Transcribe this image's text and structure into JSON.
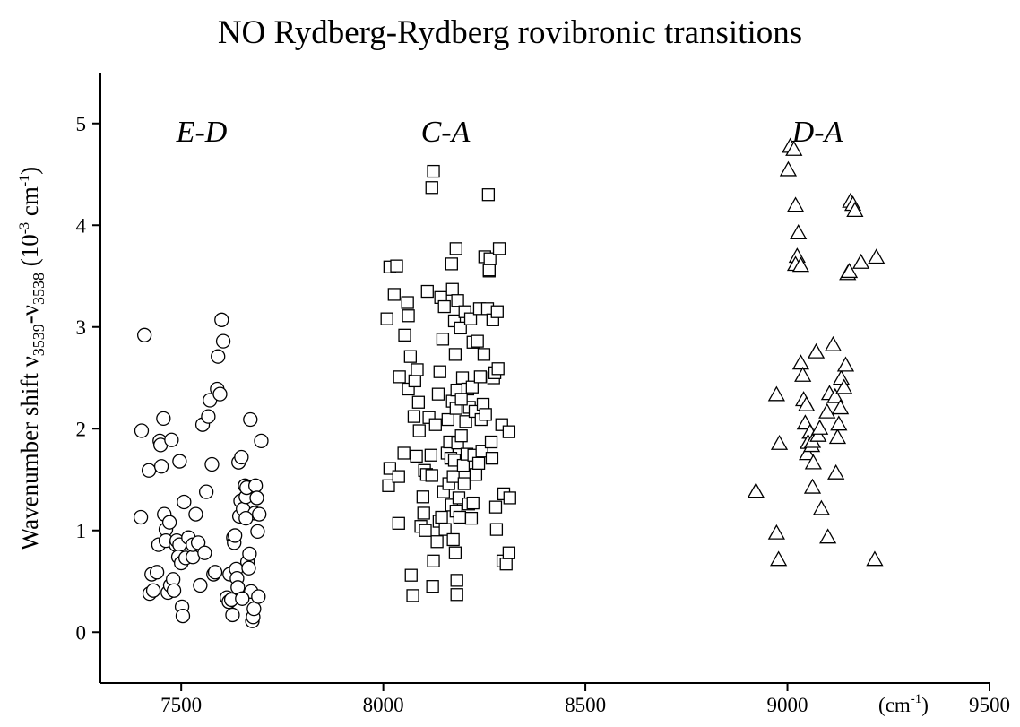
{
  "chart_data": {
    "type": "scatter",
    "title": "NO Rydberg-Rydberg rovibronic transitions",
    "ylabel": [
      "Wavenumber shift ν",
      "3539",
      "-ν",
      "3538",
      " (10",
      "-3",
      " cm",
      "-1",
      ")"
    ],
    "xunit": [
      "(cm",
      "-1",
      ")"
    ],
    "xlim": [
      7300,
      9500
    ],
    "xticks": [
      7500,
      8000,
      8500,
      9000,
      9500
    ],
    "ylim": [
      -0.5,
      5.5
    ],
    "yticks": [
      0,
      1,
      2,
      3,
      4,
      5
    ],
    "grid": false,
    "series": [
      {
        "name": "E-D",
        "marker": "circle",
        "color": "#000000",
        "x": [
          7409,
          7402,
          7400,
          7420,
          7427,
          7422,
          7431,
          7440,
          7444,
          7447,
          7451,
          7449,
          7456,
          7458,
          7462,
          7462,
          7471,
          7467,
          7476,
          7473,
          7480,
          7482,
          7487,
          7489,
          7496,
          7493,
          7500,
          7496,
          7502,
          7504,
          7507,
          7511,
          7518,
          7529,
          7529,
          7536,
          7542,
          7547,
          7553,
          7558,
          7562,
          7567,
          7571,
          7576,
          7580,
          7584,
          7589,
          7591,
          7596,
          7600,
          7604,
          7613,
          7618,
          7620,
          7624,
          7627,
          7629,
          7631,
          7633,
          7636,
          7638,
          7640,
          7642,
          7644,
          7647,
          7649,
          7653,
          7658,
          7660,
          7662,
          7664,
          7667,
          7669,
          7671,
          7673,
          7676,
          7678,
          7680,
          7682,
          7684,
          7687,
          7689,
          7691,
          7693,
          7698,
          7651,
          7660
        ],
        "values": [
          2.92,
          1.98,
          1.13,
          1.59,
          0.57,
          0.38,
          0.41,
          0.59,
          0.86,
          1.88,
          1.63,
          1.84,
          2.1,
          1.16,
          1.01,
          0.9,
          1.08,
          0.39,
          1.89,
          0.46,
          0.52,
          0.41,
          0.86,
          0.9,
          0.86,
          0.74,
          0.68,
          1.68,
          0.25,
          0.16,
          1.28,
          0.73,
          0.93,
          0.74,
          0.86,
          1.16,
          0.88,
          0.46,
          2.04,
          0.78,
          1.38,
          2.12,
          2.28,
          1.65,
          0.57,
          0.59,
          2.39,
          2.71,
          2.34,
          3.07,
          2.86,
          0.34,
          0.3,
          0.57,
          0.32,
          0.17,
          0.93,
          0.88,
          0.95,
          0.62,
          0.53,
          0.44,
          1.67,
          1.14,
          1.29,
          1.72,
          1.21,
          1.44,
          1.33,
          1.42,
          0.69,
          0.63,
          0.77,
          2.09,
          0.4,
          0.11,
          0.15,
          0.23,
          1.17,
          1.44,
          1.32,
          0.99,
          0.35,
          1.16,
          1.88,
          0.33,
          1.12
        ]
      },
      {
        "name": "C-A",
        "marker": "square",
        "color": "#000000",
        "x": [
          8016,
          8033,
          8027,
          8009,
          8016,
          8013,
          8038,
          8038,
          8040,
          8051,
          8053,
          8060,
          8062,
          8062,
          8067,
          8069,
          8073,
          8076,
          8078,
          8082,
          8084,
          8087,
          8089,
          8093,
          8098,
          8100,
          8102,
          8104,
          8107,
          8109,
          8113,
          8118,
          8120,
          8122,
          8124,
          8120,
          8124,
          8129,
          8133,
          8136,
          8138,
          8140,
          8142,
          8144,
          8147,
          8149,
          8151,
          8153,
          8158,
          8160,
          8162,
          8164,
          8167,
          8169,
          8169,
          8171,
          8171,
          8173,
          8173,
          8176,
          8176,
          8178,
          8178,
          8180,
          8180,
          8180,
          8182,
          8182,
          8182,
          8184,
          8184,
          8187,
          8189,
          8191,
          8193,
          8196,
          8198,
          8200,
          8202,
          8204,
          8207,
          8209,
          8211,
          8213,
          8216,
          8218,
          8220,
          8222,
          8224,
          8227,
          8229,
          8233,
          8236,
          8238,
          8240,
          8242,
          8244,
          8247,
          8249,
          8251,
          8253,
          8258,
          8260,
          8262,
          8262,
          8264,
          8267,
          8269,
          8271,
          8273,
          8276,
          8278,
          8280,
          8282,
          8284,
          8287,
          8293,
          8296,
          8298,
          8304,
          8311,
          8313,
          8311,
          8222,
          8193
        ],
        "values": [
          3.59,
          3.6,
          3.32,
          3.08,
          1.61,
          1.44,
          1.53,
          1.07,
          2.51,
          1.76,
          2.92,
          3.24,
          3.11,
          2.39,
          2.71,
          0.56,
          0.36,
          2.12,
          2.47,
          1.73,
          2.58,
          2.26,
          1.98,
          1.04,
          1.33,
          1.17,
          1.59,
          1.0,
          1.55,
          3.35,
          2.11,
          1.74,
          1.54,
          0.45,
          0.7,
          4.37,
          4.53,
          2.04,
          0.89,
          2.34,
          1.09,
          2.56,
          3.29,
          1.13,
          2.88,
          1.38,
          3.2,
          1.01,
          1.76,
          2.09,
          1.46,
          1.87,
          1.71,
          1.25,
          3.62,
          2.27,
          3.37,
          0.91,
          1.53,
          3.06,
          1.69,
          0.78,
          2.73,
          1.19,
          2.2,
          3.77,
          0.37,
          0.51,
          2.38,
          1.86,
          3.26,
          1.32,
          1.13,
          2.99,
          1.93,
          2.5,
          1.64,
          1.46,
          3.15,
          2.07,
          1.75,
          2.39,
          1.26,
          2.21,
          3.08,
          1.12,
          2.41,
          2.85,
          1.74,
          2.17,
          1.55,
          2.86,
          1.66,
          3.18,
          2.51,
          2.09,
          1.78,
          2.24,
          2.73,
          3.69,
          2.14,
          3.18,
          4.3,
          3.55,
          3.56,
          3.67,
          1.87,
          1.71,
          3.07,
          2.5,
          2.55,
          1.23,
          1.01,
          3.15,
          2.59,
          3.77,
          2.04,
          0.7,
          1.36,
          0.67,
          0.78,
          1.32,
          1.97,
          1.27,
          2.29
        ]
      },
      {
        "name": "D-A",
        "marker": "triangle",
        "color": "#000000",
        "x": [
          9007,
          9016,
          9002,
          9020,
          9027,
          9024,
          9020,
          9033,
          8922,
          8973,
          8978,
          8973,
          8980,
          9033,
          9038,
          9040,
          9047,
          9044,
          9056,
          9051,
          9049,
          9060,
          9062,
          9064,
          9062,
          9071,
          9076,
          9080,
          9084,
          9098,
          9100,
          9104,
          9113,
          9118,
          9120,
          9124,
          9127,
          9131,
          9133,
          9140,
          9144,
          9149,
          9153,
          9156,
          9162,
          9167,
          9182,
          9220,
          9216
        ],
        "values": [
          4.77,
          4.74,
          4.54,
          4.19,
          3.92,
          3.69,
          3.61,
          3.6,
          1.38,
          0.97,
          0.71,
          2.33,
          1.85,
          2.64,
          2.52,
          2.28,
          2.23,
          2.05,
          1.96,
          1.86,
          1.75,
          1.83,
          1.87,
          1.66,
          1.42,
          2.75,
          1.93,
          2.0,
          1.21,
          2.16,
          0.93,
          2.34,
          2.82,
          2.31,
          1.56,
          1.91,
          2.04,
          2.2,
          2.49,
          2.4,
          2.62,
          3.52,
          3.54,
          4.23,
          4.2,
          4.14,
          3.63,
          3.68,
          0.71
        ]
      }
    ]
  }
}
